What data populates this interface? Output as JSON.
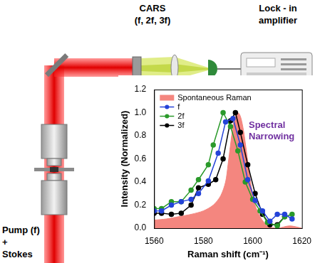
{
  "diagram": {
    "cars_label": [
      "CARS",
      "(f, 2f, 3f)"
    ],
    "lockin_label": [
      "Lock - in",
      "amplifier"
    ],
    "source_label": [
      "Pump (f)",
      "+",
      "Stokes"
    ]
  },
  "chart_data": {
    "type": "line",
    "x_label": "Raman shift (cm⁻¹)",
    "y_label": "Intensity (Normalized)",
    "annotation": "Spectral Narrowing",
    "xlim": [
      1560,
      1620
    ],
    "xticks": [
      1560,
      1580,
      1600,
      1620
    ],
    "ylim": [
      0,
      1.2
    ],
    "yticks": [
      {
        "value": 0,
        "label": "0.0"
      },
      {
        "value": 0.2,
        "label": "0.2"
      },
      {
        "value": 0.4,
        "label": "0.4"
      },
      {
        "value": 0.6,
        "label": "0.6"
      },
      {
        "value": 0.8,
        "label": "0.8"
      },
      {
        "value": 1.0,
        "label": "1.0"
      },
      {
        "value": 1.2,
        "label": "1.2"
      }
    ],
    "grid": false,
    "legend": "upper left",
    "series": [
      {
        "name": "Spontaneous Raman",
        "type": "area",
        "color": "#f4867f",
        "x": [
          1560,
          1565,
          1570,
          1575,
          1580,
          1584,
          1587,
          1589,
          1590,
          1591,
          1592,
          1593,
          1594,
          1595,
          1596,
          1597,
          1598,
          1599,
          1600,
          1601,
          1603,
          1606,
          1610,
          1615,
          1620
        ],
        "values": [
          0.07,
          0.08,
          0.1,
          0.12,
          0.15,
          0.2,
          0.28,
          0.4,
          0.55,
          0.72,
          0.88,
          0.97,
          1.0,
          0.97,
          0.88,
          0.74,
          0.58,
          0.42,
          0.3,
          0.2,
          0.1,
          0.02,
          0.0,
          0.02,
          0.0
        ]
      },
      {
        "name": "f",
        "type": "line",
        "color": "#2443d8",
        "marker": "circle",
        "x": [
          1560,
          1563,
          1567,
          1571,
          1575,
          1578,
          1582,
          1586,
          1589,
          1592,
          1595,
          1598,
          1601,
          1604,
          1607,
          1610,
          1613,
          1616
        ],
        "values": [
          0.15,
          0.15,
          0.2,
          0.23,
          0.25,
          0.3,
          0.41,
          0.65,
          0.92,
          0.95,
          0.72,
          0.42,
          0.24,
          0.15,
          0.06,
          0.12,
          0.12,
          0.08
        ]
      },
      {
        "name": "2f",
        "type": "line",
        "color": "#2a9a2a",
        "marker": "circle",
        "x": [
          1560,
          1563,
          1567,
          1571,
          1575,
          1578,
          1582,
          1584,
          1588,
          1591,
          1594,
          1597,
          1600,
          1603,
          1606,
          1610,
          1613,
          1616
        ],
        "values": [
          0.17,
          0.17,
          0.23,
          0.23,
          0.33,
          0.42,
          0.55,
          0.72,
          1.0,
          0.88,
          0.67,
          0.4,
          0.25,
          0.15,
          0.05,
          0.02,
          0.1,
          0.12
        ]
      },
      {
        "name": "3f",
        "type": "line",
        "color": "#000000",
        "marker": "circle",
        "x": [
          1560,
          1563,
          1567,
          1571,
          1575,
          1578,
          1582,
          1585,
          1588,
          1591,
          1593,
          1595,
          1598,
          1601,
          1604,
          1607,
          1610,
          1613
        ],
        "values": [
          0.13,
          0.13,
          0.12,
          0.13,
          0.2,
          0.35,
          0.38,
          0.42,
          0.6,
          0.93,
          1.0,
          0.83,
          0.55,
          0.3,
          0.12,
          0.03,
          0.03,
          0.1
        ]
      }
    ]
  }
}
